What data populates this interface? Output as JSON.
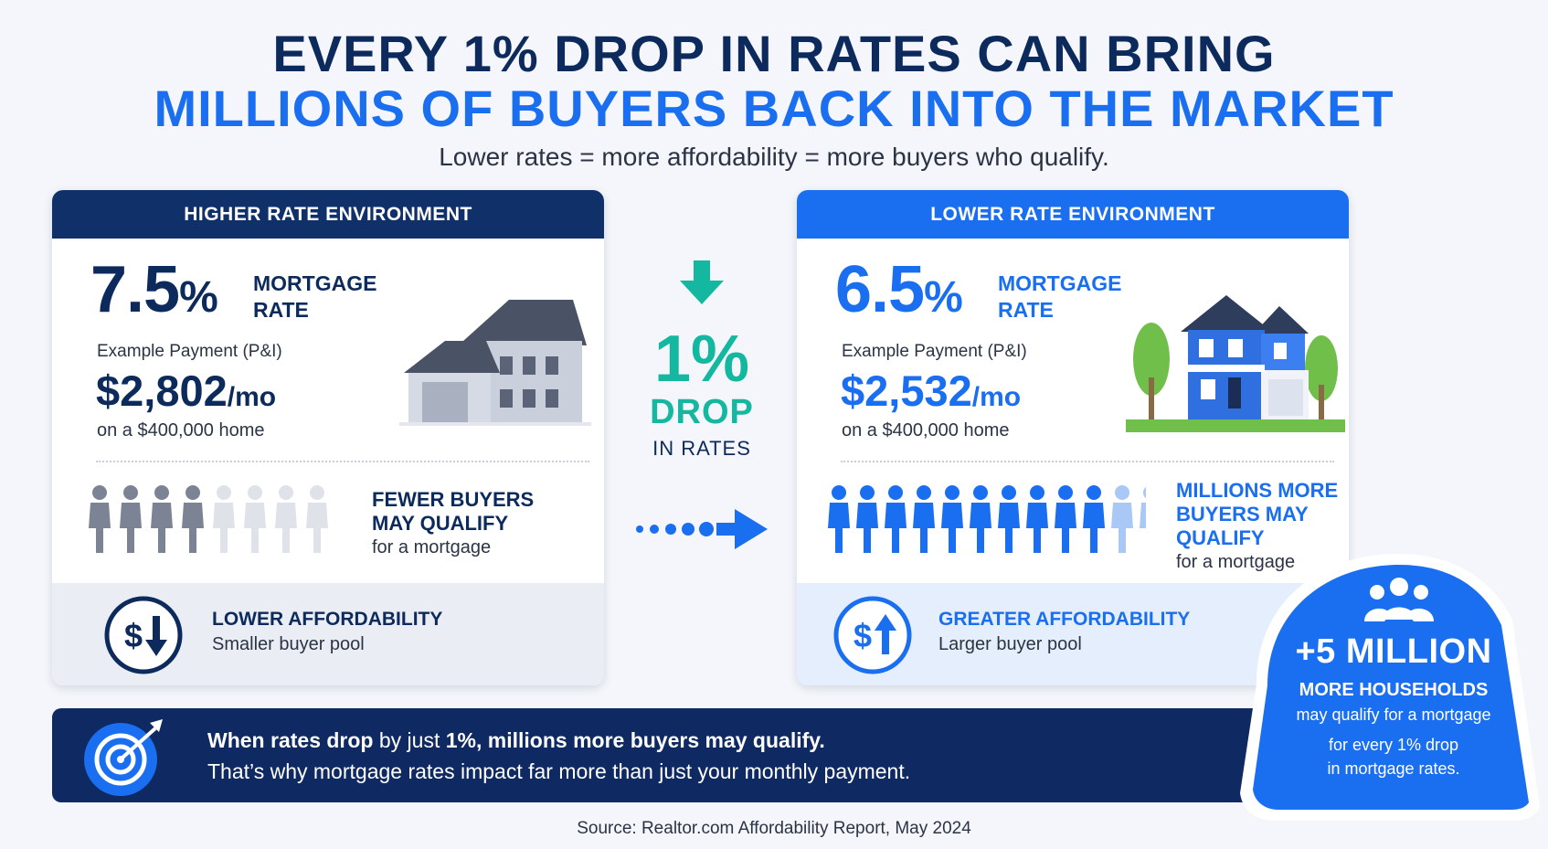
{
  "header": {
    "title_line1": "EVERY 1% DROP IN RATES CAN BRING",
    "title_line2": "MILLIONS OF BUYERS BACK INTO THE MARKET",
    "subtitle": "Lower rates = more affordability = more buyers who qualify."
  },
  "higher": {
    "heading": "HIGHER RATE ENVIRONMENT",
    "rate_value": "7.5",
    "rate_unit": "%",
    "rate_label_1": "MORTGAGE",
    "rate_label_2": "RATE",
    "payment_label": "Example Payment (P&I)",
    "payment_value": "$2,802",
    "payment_unit": "/mo",
    "home_note": "on a $400,000 home",
    "buyers_line1": "FEWER BUYERS",
    "buyers_line2": "MAY QUALIFY",
    "buyers_sub": "for a mortgage",
    "people_total": 8,
    "people_filled": 4,
    "affordability_title": "LOWER AFFORDABILITY",
    "affordability_sub": "Smaller buyer pool",
    "coin_symbol": "$"
  },
  "lower": {
    "heading": "LOWER RATE ENVIRONMENT",
    "rate_value": "6.5",
    "rate_unit": "%",
    "rate_label_1": "MORTGAGE",
    "rate_label_2": "RATE",
    "payment_label": "Example Payment (P&I)",
    "payment_value": "$2,532",
    "payment_unit": "/mo",
    "home_note": "on a $400,000 home",
    "buyers_line1": "MILLIONS MORE",
    "buyers_line2": "BUYERS MAY",
    "buyers_line3": "QUALIFY",
    "buyers_sub": "for a mortgage",
    "people_total": 12,
    "people_filled": 10,
    "affordability_title": "GREATER AFFORDABILITY",
    "affordability_sub": "Larger buyer pool",
    "coin_symbol": "$"
  },
  "center": {
    "drop_value": "1%",
    "drop_word": "DROP",
    "drop_sub": "IN RATES"
  },
  "banner": {
    "line1_a": "When ",
    "line1_b": "rates drop",
    "line1_c": " by just ",
    "line1_d": "1%, millions more buyers may qualify.",
    "line2": "That’s why mortgage rates impact far more than just your monthly payment."
  },
  "badge": {
    "title": "+5 MILLION",
    "sub1": "MORE HOUSEHOLDS",
    "sub2": "may qualify for a mortgage",
    "sub3": "for every 1% drop",
    "sub4": "in mortgage rates."
  },
  "footer": {
    "source": "Source: Realtor.com Affordability Report, May 2024"
  },
  "colors": {
    "navy": "#0d2a5c",
    "blue": "#1a6ef0",
    "teal": "#14b8a0"
  }
}
